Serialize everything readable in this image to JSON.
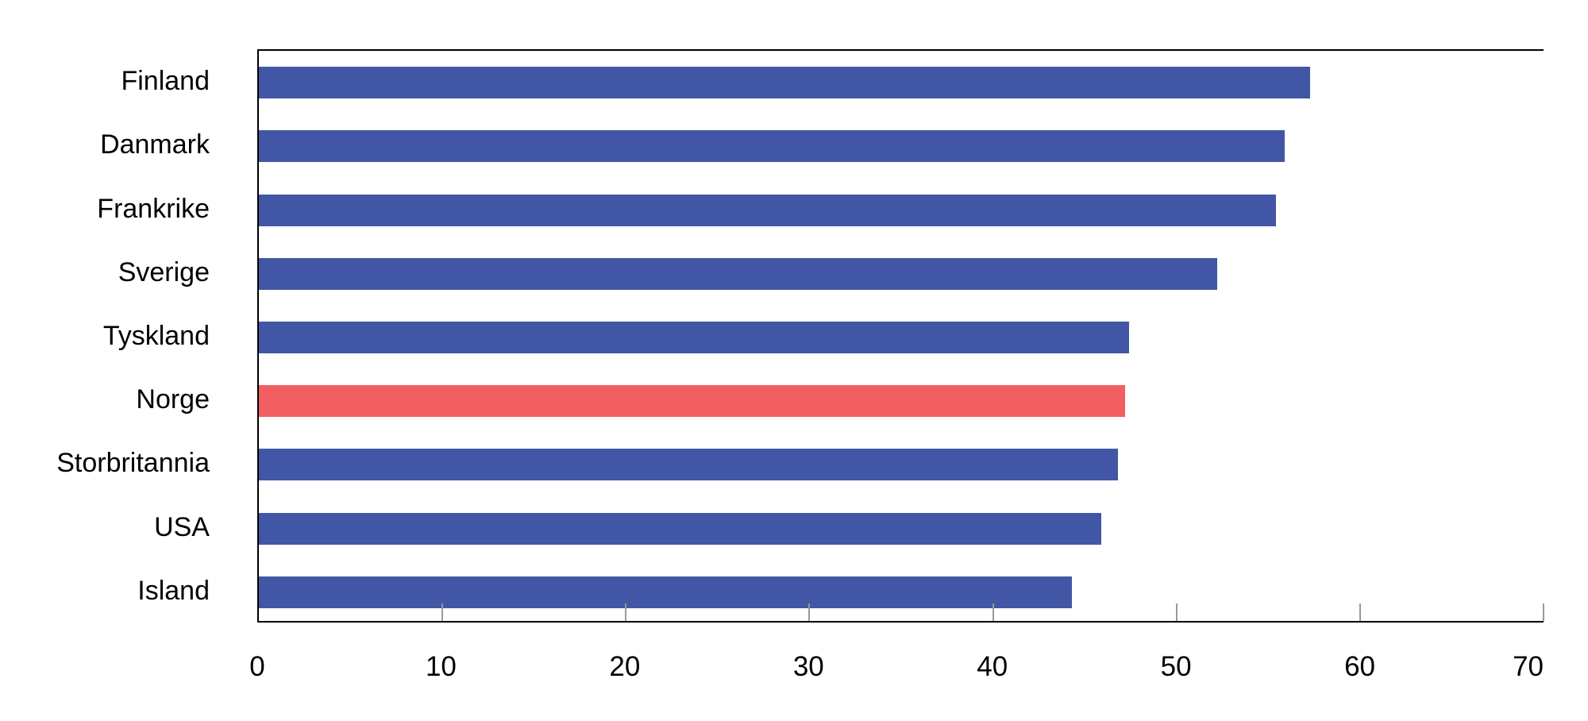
{
  "chart_data": {
    "type": "bar",
    "orientation": "horizontal",
    "title": "",
    "categories": [
      "Finland",
      "Danmark",
      "Frankrike",
      "Sverige",
      "Tyskland",
      "Norge",
      "Storbritannia",
      "USA",
      "Island"
    ],
    "values": [
      57.3,
      55.9,
      55.4,
      52.2,
      47.4,
      47.2,
      46.8,
      45.9,
      44.3
    ],
    "highlighted_category": "Norge",
    "highlighted_index": 5,
    "xlim": [
      0,
      70
    ],
    "x_ticks": [
      0,
      10,
      20,
      30,
      40,
      50,
      60,
      70
    ],
    "grid": false,
    "legend": "none",
    "colors": {
      "bar": "#4156a5",
      "highlight": "#f25e62",
      "axis": "#000000",
      "tick": "#999999",
      "text": "#000000",
      "background": "#ffffff"
    }
  }
}
